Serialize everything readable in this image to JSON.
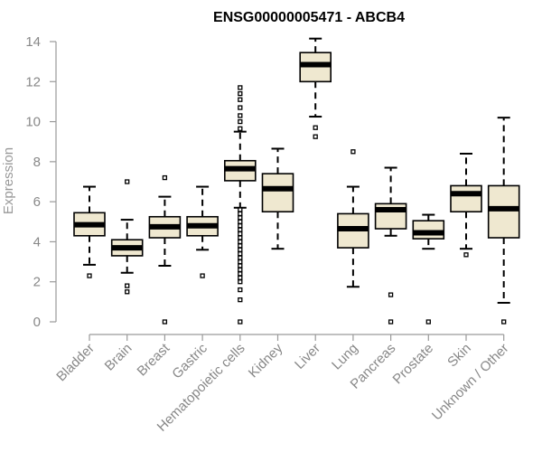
{
  "chart_data": {
    "type": "boxplot",
    "title": "ENSG00000005471 - ABCB4",
    "xlabel": "",
    "ylabel": "Expression",
    "ylim": [
      0,
      14
    ],
    "yticks": [
      0,
      2,
      4,
      6,
      8,
      10,
      12,
      14
    ],
    "ytick_labels": [
      "0",
      "2",
      "4",
      "6",
      "8",
      "10",
      "12",
      "14"
    ],
    "grid": false,
    "colors": {
      "box_fill": "#efe8d0",
      "box_stroke": "#000000",
      "axis": "#9a9a9a",
      "text": "#888888"
    },
    "categories": [
      "Bladder",
      "Brain",
      "Breast",
      "Gastric",
      "Hematopoietic cells",
      "Kidney",
      "Liver",
      "Lung",
      "Pancreas",
      "Prostate",
      "Skin",
      "Unknown / Other"
    ],
    "boxes": [
      {
        "category": "Bladder",
        "whisker_low": 2.85,
        "q1": 4.3,
        "median": 4.85,
        "q3": 5.45,
        "whisker_high": 6.75,
        "outliers": [
          2.3
        ]
      },
      {
        "category": "Brain",
        "whisker_low": 2.45,
        "q1": 3.3,
        "median": 3.7,
        "q3": 4.1,
        "whisker_high": 5.1,
        "outliers": [
          1.5,
          1.8,
          7.0
        ]
      },
      {
        "category": "Breast",
        "whisker_low": 2.8,
        "q1": 4.2,
        "median": 4.75,
        "q3": 5.25,
        "whisker_high": 6.25,
        "outliers": [
          0.0,
          7.2
        ]
      },
      {
        "category": "Gastric",
        "whisker_low": 3.6,
        "q1": 4.3,
        "median": 4.8,
        "q3": 5.25,
        "whisker_high": 6.75,
        "outliers": [
          2.3
        ]
      },
      {
        "category": "Hematopoietic cells",
        "whisker_low": 5.7,
        "q1": 7.05,
        "median": 7.65,
        "q3": 8.05,
        "whisker_high": 9.5,
        "outliers": [
          0.0,
          1.1,
          1.6,
          2.0,
          2.2,
          2.4,
          2.6,
          2.8,
          3.0,
          3.2,
          3.4,
          3.6,
          3.8,
          4.0,
          4.2,
          4.4,
          4.6,
          4.8,
          5.0,
          5.2,
          5.4,
          5.6,
          9.65,
          10.0,
          10.3,
          10.7,
          11.1,
          11.4,
          11.7
        ]
      },
      {
        "category": "Kidney",
        "whisker_low": 3.65,
        "q1": 5.5,
        "median": 6.65,
        "q3": 7.4,
        "whisker_high": 8.65,
        "outliers": []
      },
      {
        "category": "Liver",
        "whisker_low": 10.25,
        "q1": 12.0,
        "median": 12.85,
        "q3": 13.45,
        "whisker_high": 14.15,
        "outliers": [
          9.25,
          9.7
        ]
      },
      {
        "category": "Lung",
        "whisker_low": 1.75,
        "q1": 3.7,
        "median": 4.65,
        "q3": 5.4,
        "whisker_high": 6.75,
        "outliers": [
          8.5
        ]
      },
      {
        "category": "Pancreas",
        "whisker_low": 4.3,
        "q1": 4.65,
        "median": 5.6,
        "q3": 5.9,
        "whisker_high": 7.7,
        "outliers": [
          0.0,
          1.35
        ]
      },
      {
        "category": "Prostate",
        "whisker_low": 3.65,
        "q1": 4.15,
        "median": 4.45,
        "q3": 5.05,
        "whisker_high": 5.35,
        "outliers": [
          0.0
        ]
      },
      {
        "category": "Skin",
        "whisker_low": 3.65,
        "q1": 5.5,
        "median": 6.4,
        "q3": 6.8,
        "whisker_high": 8.4,
        "outliers": [
          3.35
        ]
      },
      {
        "category": "Unknown / Other",
        "whisker_low": 0.95,
        "q1": 4.2,
        "median": 5.65,
        "q3": 6.8,
        "whisker_high": 10.2,
        "outliers": [
          0.0
        ]
      }
    ]
  }
}
